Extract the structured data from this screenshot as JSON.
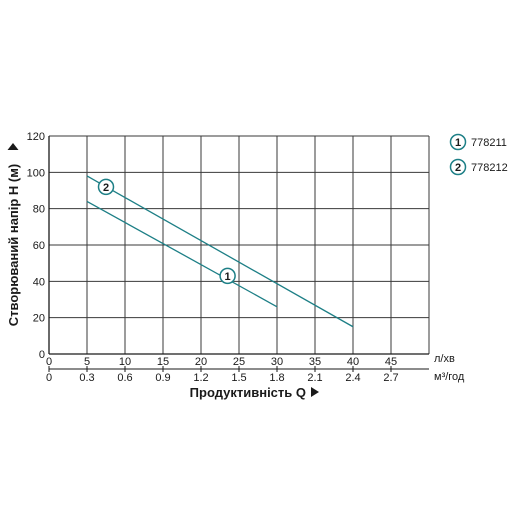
{
  "chart_data": {
    "type": "line",
    "ylabel": "Створюваний напір H (м)",
    "xlabel": "Продуктивність  Q",
    "x_unit": "л/хв",
    "x2_unit": "м³/год",
    "xlim": [
      0,
      50
    ],
    "ylim": [
      0,
      120
    ],
    "x_ticks": [
      0,
      5,
      10,
      15,
      20,
      25,
      30,
      35,
      40,
      45
    ],
    "y_ticks": [
      0,
      20,
      40,
      60,
      80,
      100,
      120
    ],
    "x2_ticks": [
      "0",
      "0.3",
      "0.6",
      "0.9",
      "1.2",
      "1.5",
      "1.8",
      "2.1",
      "2.4",
      "2.7"
    ],
    "grid": true,
    "line_color": "#1d7f86",
    "series": [
      {
        "marker": "1",
        "name": "778211",
        "x": [
          5,
          30
        ],
        "y": [
          84,
          26
        ],
        "label_at": [
          23.5,
          43
        ]
      },
      {
        "marker": "2",
        "name": "778212",
        "x": [
          5,
          40
        ],
        "y": [
          98,
          15
        ],
        "label_at": [
          7.5,
          92
        ]
      }
    ]
  }
}
